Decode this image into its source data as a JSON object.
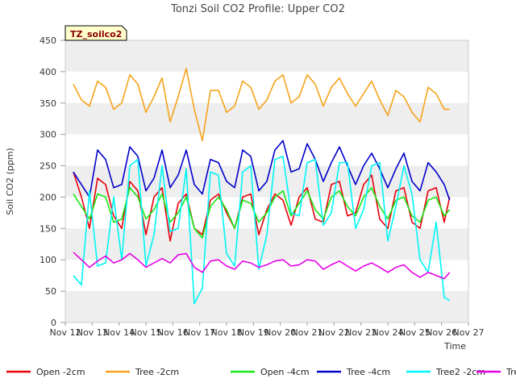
{
  "chart_data": {
    "type": "line",
    "title": "Tonzi Soil CO2 Profile: Upper CO2",
    "xlabel": "Time",
    "ylabel": "Soil CO2 (ppm)",
    "ylim": [
      0,
      450
    ],
    "yticks": [
      0,
      50,
      100,
      150,
      200,
      250,
      300,
      350,
      400,
      450
    ],
    "xlim": [
      12,
      27
    ],
    "xticks": [
      12,
      13,
      14,
      15,
      16,
      17,
      18,
      19,
      20,
      21,
      22,
      23,
      24,
      25,
      26,
      27
    ],
    "xtick_labels": [
      "Nov 12",
      "Nov 13",
      "Nov 14",
      "Nov 15",
      "Nov 16",
      "Nov 17",
      "Nov 18",
      "Nov 19",
      "Nov 20",
      "Nov 21",
      "Nov 22",
      "Nov 23",
      "Nov 24",
      "Nov 25",
      "Nov 26",
      "Nov 27"
    ],
    "grid": "horizontal bands",
    "legend_position": "bottom",
    "watermark": "TZ_soilco2",
    "x": [
      12.3,
      12.6,
      12.9,
      13.2,
      13.5,
      13.8,
      14.1,
      14.4,
      14.7,
      15.0,
      15.3,
      15.6,
      15.9,
      16.2,
      16.5,
      16.8,
      17.1,
      17.4,
      17.7,
      18.0,
      18.3,
      18.6,
      18.9,
      19.2,
      19.5,
      19.8,
      20.1,
      20.4,
      20.7,
      21.0,
      21.3,
      21.6,
      21.9,
      22.2,
      22.5,
      22.8,
      23.1,
      23.4,
      23.7,
      24.0,
      24.3,
      24.6,
      24.9,
      25.2,
      25.5,
      25.8,
      26.1,
      26.3
    ],
    "series": [
      {
        "name": "Open -2cm",
        "color": "#e8000b",
        "values": [
          240,
          200,
          150,
          230,
          220,
          170,
          150,
          225,
          210,
          140,
          200,
          215,
          130,
          190,
          205,
          150,
          140,
          195,
          205,
          175,
          150,
          200,
          205,
          140,
          180,
          205,
          195,
          155,
          200,
          215,
          165,
          160,
          220,
          225,
          170,
          175,
          220,
          235,
          165,
          150,
          210,
          215,
          160,
          150,
          210,
          215,
          160,
          200
        ]
      },
      {
        "name": "Tree -2cm",
        "color": "#f5a31a",
        "values": [
          380,
          355,
          345,
          385,
          375,
          340,
          350,
          395,
          380,
          335,
          360,
          390,
          320,
          360,
          405,
          340,
          290,
          370,
          370,
          335,
          345,
          385,
          375,
          340,
          355,
          385,
          395,
          350,
          360,
          395,
          380,
          345,
          375,
          390,
          365,
          345,
          365,
          385,
          355,
          330,
          370,
          360,
          335,
          320,
          375,
          365,
          340,
          340
        ]
      },
      {
        "name": "Open -4cm",
        "color": "#17e817",
        "values": [
          205,
          185,
          165,
          205,
          200,
          160,
          165,
          215,
          200,
          165,
          180,
          205,
          160,
          175,
          200,
          150,
          135,
          185,
          200,
          180,
          150,
          195,
          190,
          160,
          175,
          200,
          210,
          170,
          190,
          210,
          180,
          165,
          200,
          210,
          185,
          170,
          200,
          215,
          185,
          165,
          195,
          200,
          170,
          160,
          195,
          200,
          170,
          180
        ]
      },
      {
        "name": "Tree -4cm",
        "color": "#0000cc",
        "values": [
          240,
          220,
          200,
          275,
          260,
          215,
          220,
          280,
          265,
          210,
          230,
          275,
          215,
          235,
          275,
          220,
          205,
          260,
          255,
          225,
          215,
          275,
          265,
          210,
          225,
          275,
          290,
          240,
          245,
          285,
          260,
          225,
          255,
          280,
          250,
          220,
          250,
          270,
          245,
          215,
          245,
          270,
          225,
          210,
          255,
          240,
          220,
          195
        ]
      },
      {
        "name": "Tree2 -2cm",
        "color": "#00f5f5",
        "values": [
          75,
          60,
          210,
          90,
          95,
          200,
          100,
          250,
          260,
          90,
          140,
          250,
          145,
          150,
          245,
          30,
          55,
          240,
          235,
          110,
          90,
          240,
          250,
          85,
          140,
          260,
          265,
          175,
          170,
          255,
          260,
          155,
          175,
          255,
          255,
          150,
          180,
          250,
          255,
          130,
          185,
          250,
          205,
          100,
          80,
          160,
          40,
          35
        ]
      },
      {
        "name": "Tree2 - 4cm",
        "color": "#e600e6",
        "values": [
          112,
          100,
          88,
          98,
          106,
          95,
          100,
          110,
          100,
          88,
          95,
          102,
          95,
          108,
          110,
          88,
          80,
          98,
          100,
          90,
          85,
          98,
          95,
          88,
          92,
          98,
          100,
          90,
          92,
          100,
          98,
          85,
          92,
          98,
          90,
          82,
          90,
          95,
          88,
          80,
          88,
          92,
          80,
          72,
          80,
          75,
          70,
          80
        ]
      }
    ]
  }
}
